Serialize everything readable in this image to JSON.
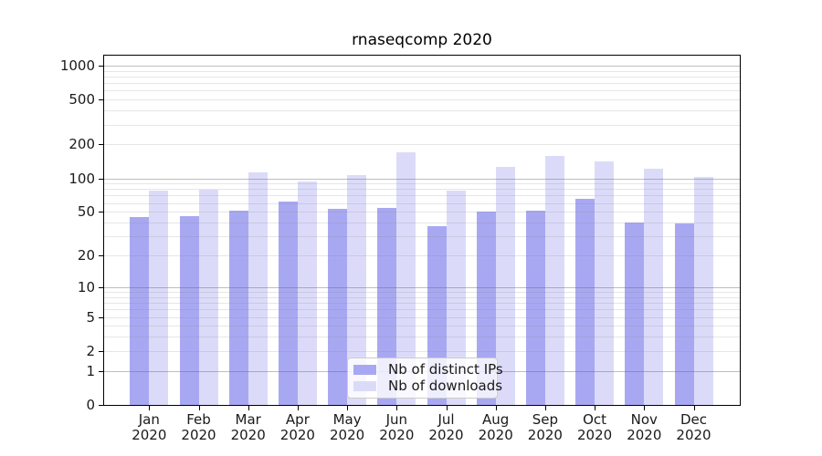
{
  "chart_data": {
    "type": "bar",
    "title": "rnaseqcomp 2020",
    "categories": [
      "Jan",
      "Feb",
      "Mar",
      "Apr",
      "May",
      "Jun",
      "Jul",
      "Aug",
      "Sep",
      "Oct",
      "Nov",
      "Dec"
    ],
    "year_label": "2020",
    "series": [
      {
        "name": "Nb of distinct IPs",
        "color": "#a8a8f2",
        "values": [
          45,
          46,
          51,
          62,
          53,
          54,
          37,
          50,
          51,
          65,
          40,
          39
        ]
      },
      {
        "name": "Nb of downloads",
        "color": "#dbdbf9",
        "values": [
          77,
          79,
          112,
          93,
          106,
          171,
          78,
          126,
          159,
          142,
          121,
          102
        ]
      }
    ],
    "yscale": "log10(1+v)",
    "yticks": [
      0,
      1,
      2,
      5,
      10,
      20,
      50,
      100,
      200,
      500,
      1000
    ],
    "ymajor_gridlines": [
      1,
      10,
      100,
      1000
    ],
    "yminor_gridlines": [
      2,
      3,
      4,
      5,
      6,
      7,
      8,
      9,
      20,
      30,
      40,
      50,
      60,
      70,
      80,
      90,
      200,
      300,
      400,
      500,
      600,
      700,
      800,
      900
    ],
    "ylim": [
      0,
      1280
    ],
    "xlabel": "",
    "ylabel": "",
    "grid": true,
    "legend_position": "lower center-right inside"
  },
  "colors": {
    "background": "#ffffff",
    "spine": "#000000",
    "major_grid": "#b0b0b0",
    "minor_grid": "#e4e4e4",
    "text": "#1a1a1a"
  }
}
